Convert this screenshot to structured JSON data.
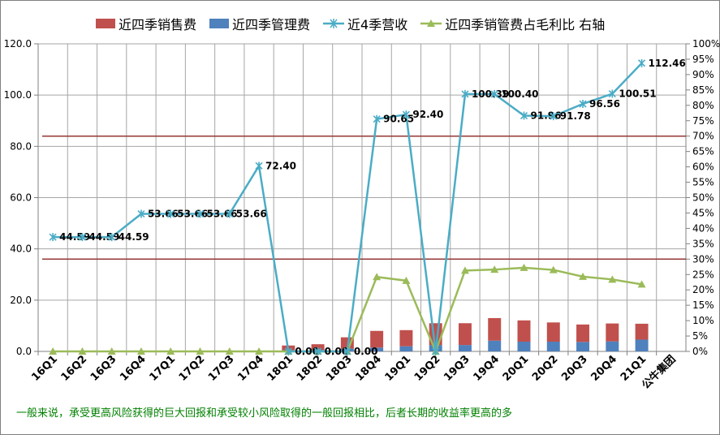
{
  "chart_data": {
    "type": "bar",
    "categories": [
      "16Q1",
      "16Q2",
      "16Q3",
      "16Q4",
      "17Q1",
      "17Q2",
      "17Q3",
      "17Q4",
      "18Q1",
      "18Q2",
      "18Q3",
      "18Q4",
      "19Q1",
      "19Q2",
      "19Q3",
      "19Q4",
      "20Q1",
      "20Q2",
      "20Q3",
      "20Q4",
      "21Q1",
      "公牛集团"
    ],
    "ylim": [
      0,
      120
    ],
    "yticks": [
      "0.0",
      "20.0",
      "40.0",
      "60.0",
      "80.0",
      "100.0",
      "120.0"
    ],
    "y2lim": [
      0,
      100
    ],
    "y2ticks": [
      "0%",
      "5%",
      "10%",
      "15%",
      "20%",
      "25%",
      "30%",
      "35%",
      "40%",
      "45%",
      "50%",
      "55%",
      "60%",
      "65%",
      "70%",
      "75%",
      "80%",
      "85%",
      "90%",
      "95%",
      "100%"
    ],
    "series": [
      {
        "name": "近四季销售费",
        "kind": "bar",
        "color": "#C0504D",
        "values": [
          0,
          0,
          0,
          0,
          0,
          0,
          0,
          0,
          1.8,
          2.2,
          4.5,
          6.5,
          6.3,
          8.5,
          8.5,
          8.8,
          8.3,
          7.5,
          6.8,
          7.0,
          6.2,
          null
        ]
      },
      {
        "name": "近四季管理费",
        "kind": "bar",
        "color": "#4F81BD",
        "values": [
          0,
          0,
          0,
          0,
          0,
          0,
          0,
          0,
          0.5,
          0.6,
          1.0,
          1.5,
          2.0,
          2.5,
          2.5,
          4.2,
          3.8,
          3.8,
          3.7,
          3.9,
          4.6,
          null
        ]
      },
      {
        "name": "近4季营收",
        "kind": "line",
        "color": "#4BACC6",
        "values": [
          44.59,
          44.59,
          44.59,
          53.66,
          53.66,
          53.66,
          53.66,
          72.4,
          0.0,
          0.0,
          0.0,
          90.65,
          92.4,
          0.0,
          100.39,
          100.4,
          91.96,
          91.78,
          96.56,
          100.51,
          112.46,
          null
        ],
        "labels": [
          "44.59",
          "44.59",
          "44.59",
          "53.66",
          "53.66",
          "53.66",
          "53.66",
          "72.40",
          "0.00",
          "0.00",
          "0.00",
          "90.65",
          "92.40",
          "",
          "100.39",
          "100.40",
          "91.96",
          "91.78",
          "96.56",
          "100.51",
          "112.46",
          ""
        ]
      },
      {
        "name": "近四季销管费占毛利比 右轴",
        "kind": "line",
        "axis": "right",
        "color": "#9BBB59",
        "values": [
          0,
          0,
          0,
          0,
          0,
          0,
          0,
          0,
          0,
          0,
          0,
          24.2,
          23.0,
          0,
          26.3,
          26.6,
          27.2,
          26.5,
          24.3,
          23.4,
          21.8,
          null
        ]
      }
    ],
    "reference_lines": [
      {
        "axis": "left",
        "value": 84.0,
        "color": "#953735"
      },
      {
        "axis": "left",
        "value": 36.0,
        "color": "#953735"
      }
    ]
  },
  "footer": "一般来说，承受更高风险获得的巨大回报和承受较小风险取得的一般回报相比，后者长期的收益率更高的多"
}
